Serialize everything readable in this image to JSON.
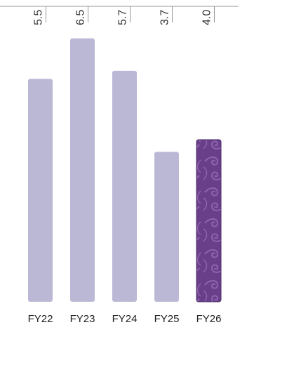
{
  "chart_data": {
    "type": "bar",
    "title": "",
    "xlabel": "",
    "ylabel": "",
    "categories": [
      "FY22",
      "FY23",
      "FY24",
      "FY25",
      "FY26"
    ],
    "values": [
      5.5,
      6.5,
      5.7,
      3.7,
      4.0
    ],
    "value_labels": [
      "5.5",
      "6.5",
      "5.7",
      "3.7",
      "4.0"
    ],
    "ylim": [
      0,
      7.1
    ],
    "grid": false,
    "legend": "none",
    "highlight_index": 4,
    "colors": {
      "bar": "#bbb8d6",
      "highlight": "#6a3f8a",
      "highlight_pattern": "#8d63ad",
      "highlight_edge": "#4a2c66",
      "axis": "#999999"
    }
  }
}
